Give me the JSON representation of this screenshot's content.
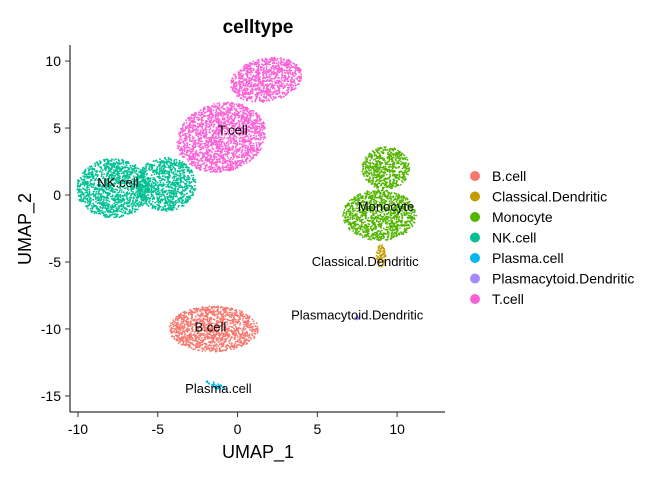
{
  "chart_data": {
    "type": "scatter",
    "title": "celltype",
    "xlabel": "UMAP_1",
    "ylabel": "UMAP_2",
    "xlim": [
      -10.5,
      13
    ],
    "ylim": [
      -16.2,
      11.2
    ],
    "xticks": [
      -10,
      -5,
      0,
      5,
      10
    ],
    "yticks": [
      -15,
      -10,
      -5,
      0,
      5,
      10
    ],
    "xtick_labels": [
      "-10",
      "-5",
      "0",
      "5",
      "10"
    ],
    "ytick_labels": [
      "-15",
      "-10",
      "-5",
      "0",
      "5",
      "10"
    ],
    "grid": false,
    "legend_position": "right",
    "series": [
      {
        "name": "B.cell",
        "color": "#F8766D",
        "label": "B.cell",
        "label_xy": [
          -1.7,
          -10.2
        ],
        "ellipses": [
          [
            -1.5,
            -10.0,
            2.8,
            1.7,
            0
          ]
        ]
      },
      {
        "name": "Classical.Dendritic",
        "color": "#C49A00",
        "label": "Classical.Dendritic",
        "label_xy": [
          8.0,
          -5.3
        ],
        "ellipses": [
          [
            9.0,
            -4.6,
            0.3,
            0.9,
            0
          ]
        ]
      },
      {
        "name": "Monocyte",
        "color": "#53B400",
        "label": "Monocyte",
        "label_xy": [
          9.3,
          -1.2
        ],
        "ellipses": [
          [
            9.3,
            2.0,
            1.5,
            1.6,
            0
          ],
          [
            8.9,
            -1.5,
            2.3,
            1.9,
            0
          ]
        ]
      },
      {
        "name": "NK.cell",
        "color": "#00C094",
        "label": "NK.cell",
        "label_xy": [
          -7.5,
          0.6
        ],
        "ellipses": [
          [
            -7.8,
            0.5,
            2.3,
            2.2,
            0
          ],
          [
            -4.5,
            0.8,
            1.9,
            2.0,
            0
          ]
        ]
      },
      {
        "name": "Plasma.cell",
        "color": "#00B6EB",
        "label": "Plasma.cell",
        "label_xy": [
          -1.2,
          -14.8
        ],
        "ellipses": [
          [
            -1.4,
            -14.2,
            0.7,
            0.2,
            -0.5
          ]
        ]
      },
      {
        "name": "Plasmacytoid.Dendritic",
        "color": "#A58AFF",
        "label": "Plasmacytoid.Dendritic",
        "label_xy": [
          7.5,
          -9.3
        ],
        "ellipses": [
          [
            7.5,
            -9.2,
            0.12,
            0.12,
            0
          ]
        ]
      },
      {
        "name": "T.cell",
        "color": "#FB61D7",
        "label": "T.cell",
        "label_xy": [
          -0.3,
          4.5
        ],
        "ellipses": [
          [
            -1.0,
            4.3,
            2.9,
            2.5,
            0.55
          ],
          [
            1.8,
            8.6,
            2.3,
            1.6,
            0.3
          ]
        ]
      }
    ]
  }
}
